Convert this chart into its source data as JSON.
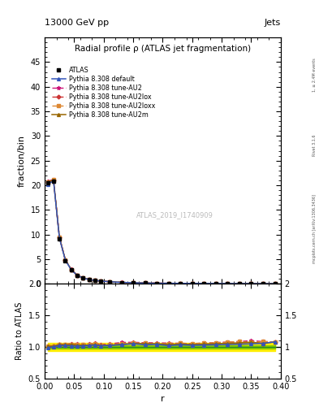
{
  "title_top_left": "13000 GeV pp",
  "title_top_right": "Jets",
  "plot_title": "Radial profile ρ (ATLAS jet fragmentation)",
  "watermark": "ATLAS_2019_I1740909",
  "right_label_1": "1, ≥ 2.4M events",
  "right_label_2": "Rivet 3.1.6",
  "right_label_3": "mcplots.cern.ch [arXiv:1306.3436]",
  "ylabel_main": "fraction/bin",
  "ylabel_ratio": "Ratio to ATLAS",
  "xlabel": "r",
  "xlim": [
    0.0,
    0.4
  ],
  "ylim_main": [
    0,
    50
  ],
  "ylim_ratio": [
    0.5,
    2.0
  ],
  "yticks_main": [
    0,
    5,
    10,
    15,
    20,
    25,
    30,
    35,
    40,
    45
  ],
  "yticks_ratio": [
    0.5,
    1.0,
    1.5,
    2.0
  ],
  "r_values": [
    0.005,
    0.015,
    0.025,
    0.035,
    0.045,
    0.055,
    0.065,
    0.075,
    0.085,
    0.095,
    0.11,
    0.13,
    0.15,
    0.17,
    0.19,
    0.21,
    0.23,
    0.25,
    0.27,
    0.29,
    0.31,
    0.33,
    0.35,
    0.37,
    0.39
  ],
  "atlas_data": [
    20.5,
    20.8,
    9.1,
    4.7,
    2.8,
    1.7,
    1.15,
    0.85,
    0.65,
    0.55,
    0.42,
    0.28,
    0.2,
    0.15,
    0.12,
    0.1,
    0.085,
    0.075,
    0.065,
    0.058,
    0.052,
    0.046,
    0.04,
    0.035,
    0.025
  ],
  "pythia_default": [
    20.2,
    20.9,
    9.3,
    4.8,
    2.85,
    1.72,
    1.17,
    0.87,
    0.67,
    0.56,
    0.43,
    0.29,
    0.21,
    0.155,
    0.125,
    0.102,
    0.088,
    0.077,
    0.067,
    0.06,
    0.054,
    0.048,
    0.042,
    0.037,
    0.027
  ],
  "pythia_AU2": [
    20.8,
    21.2,
    9.5,
    4.9,
    2.95,
    1.78,
    1.2,
    0.89,
    0.69,
    0.57,
    0.44,
    0.3,
    0.215,
    0.16,
    0.128,
    0.106,
    0.09,
    0.079,
    0.069,
    0.062,
    0.056,
    0.05,
    0.044,
    0.038,
    0.027
  ],
  "pythia_AU2lox": [
    20.6,
    21.0,
    9.4,
    4.85,
    2.9,
    1.75,
    1.18,
    0.88,
    0.68,
    0.565,
    0.435,
    0.295,
    0.212,
    0.158,
    0.126,
    0.104,
    0.089,
    0.078,
    0.068,
    0.061,
    0.055,
    0.049,
    0.043,
    0.037,
    0.027
  ],
  "pythia_AU2loxx": [
    20.7,
    21.1,
    9.45,
    4.87,
    2.92,
    1.76,
    1.19,
    0.88,
    0.68,
    0.565,
    0.435,
    0.295,
    0.213,
    0.159,
    0.127,
    0.105,
    0.09,
    0.079,
    0.069,
    0.062,
    0.056,
    0.05,
    0.043,
    0.038,
    0.027
  ],
  "pythia_AU2m": [
    20.65,
    21.05,
    9.42,
    4.86,
    2.91,
    1.75,
    1.185,
    0.875,
    0.675,
    0.562,
    0.432,
    0.292,
    0.211,
    0.158,
    0.126,
    0.104,
    0.089,
    0.078,
    0.068,
    0.061,
    0.055,
    0.049,
    0.043,
    0.037,
    0.027
  ],
  "color_atlas": "#000000",
  "color_default": "#3355bb",
  "color_AU2": "#cc1177",
  "color_AU2lox": "#cc3333",
  "color_AU2loxx": "#dd8833",
  "color_AU2m": "#996600",
  "color_band_green": "#88cc00",
  "color_band_yellow": "#ffee00",
  "legend_labels": [
    "ATLAS",
    "Pythia 8.308 default",
    "Pythia 8.308 tune-AU2",
    "Pythia 8.308 tune-AU2lox",
    "Pythia 8.308 tune-AU2loxx",
    "Pythia 8.308 tune-AU2m"
  ]
}
